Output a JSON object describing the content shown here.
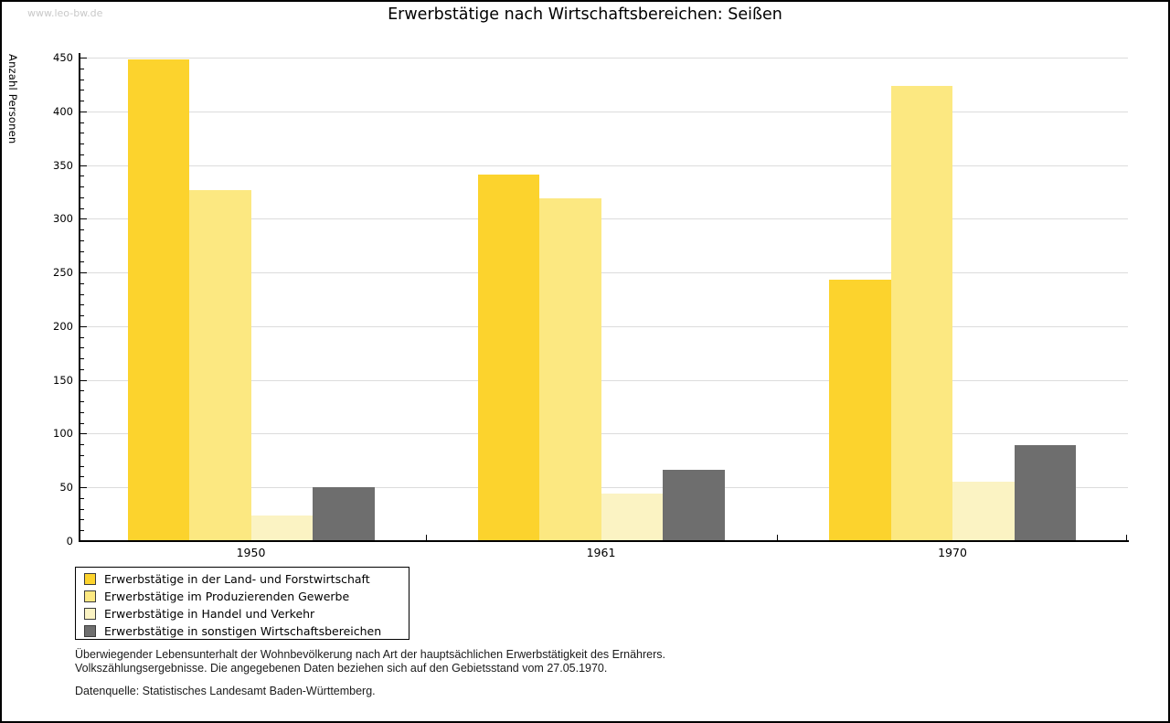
{
  "watermark": "www.leo-bw.de",
  "title": "Erwerbstätige nach Wirtschaftsbereichen: Seißen",
  "chart_data": {
    "type": "bar",
    "title": "Erwerbstätige nach Wirtschaftsbereichen: Seißen",
    "ylabel": "Anzahl Personen",
    "xlabel": "",
    "categories": [
      "1950",
      "1961",
      "1970"
    ],
    "series": [
      {
        "name": "Erwerbstätige in der Land- und Forstwirtschaft",
        "color": "#FCD32D",
        "values": [
          448,
          341,
          243
        ]
      },
      {
        "name": "Erwerbstätige im Produzierenden Gewerbe",
        "color": "#FCE881",
        "values": [
          327,
          319,
          424
        ]
      },
      {
        "name": "Erwerbstätige in Handel und Verkehr",
        "color": "#FBF3C3",
        "values": [
          24,
          44,
          55
        ]
      },
      {
        "name": "Erwerbstätige in sonstigen Wirtschaftsbereichen",
        "color": "#6E6E6E",
        "values": [
          50,
          66,
          89
        ]
      }
    ],
    "ylim": [
      0,
      450
    ],
    "ytick_step": 50,
    "minor_tick_step": 10,
    "grid": true,
    "gridline_color": "#dcdcdc",
    "legend_position": "bottom-left"
  },
  "footnotes": {
    "line1": "Überwiegender Lebensunterhalt der Wohnbevölkerung nach Art der hauptsächlichen Erwerbstätigkeit des Ernährers.",
    "line2": "Volkszählungsergebnisse. Die angegebenen Daten beziehen sich auf den Gebietsstand vom 27.05.1970.",
    "source": "Datenquelle: Statistisches Landesamt Baden-Württemberg."
  }
}
